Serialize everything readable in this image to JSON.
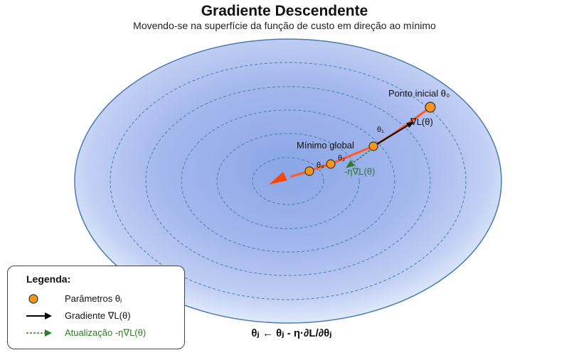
{
  "header": {
    "title": "Gradiente Descendente",
    "subtitle": "Movendo-se na superfície da função de custo em direção ao mínimo"
  },
  "labels": {
    "start": "Ponto inicial θ₀",
    "minimum": "Mínimo global",
    "gradient": "∇L(θ)",
    "update": "-η∇L(θ)",
    "theta1": "θ₁",
    "theta2": "θ₂",
    "theta3": "θ₃"
  },
  "legend": {
    "title": "Legenda:",
    "parameters": "Parâmetros θⱼ",
    "gradient": "Gradiente ∇L(θ)",
    "update": "Atualização -η∇L(θ)"
  },
  "formula": "θⱼ ← θⱼ - η·∂L/∂θⱼ",
  "colors": {
    "surface_center": "#8fabea",
    "surface_edge": "#dceafc",
    "surface_border": "#4a7ab0",
    "contour": "#4a7fa8",
    "path": "#ff5a1f",
    "point_fill": "#f7941d",
    "point_stroke": "#333333",
    "gradient_arrow": "#000000",
    "update_arrow": "#2e7d22"
  }
}
